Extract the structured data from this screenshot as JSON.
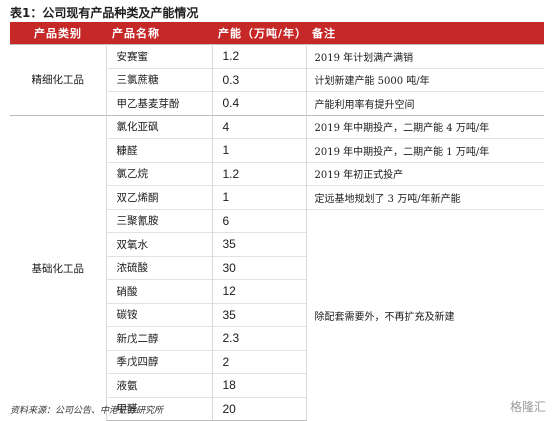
{
  "caption": "表1：公司现有产品种类及产能情况",
  "headers": {
    "category": "产品类别",
    "name": "产品名称",
    "capacity": "产能（万吨/年）",
    "note": "备注"
  },
  "groups": [
    {
      "category": "精细化工品",
      "rows": [
        {
          "name": "安赛蜜",
          "capacity": "1.2",
          "note": "2019 年计划满产满销"
        },
        {
          "name": "三氯蔗糖",
          "capacity": "0.3",
          "note": "计划新建产能 5000 吨/年"
        },
        {
          "name": "甲乙基麦芽酚",
          "capacity": "0.4",
          "note": "产能利用率有提升空间"
        }
      ]
    },
    {
      "category": "基础化工品",
      "rows": [
        {
          "name": "氯化亚砜",
          "capacity": "4",
          "note": "2019 年中期投产，二期产能 4 万吨/年"
        },
        {
          "name": "糠醛",
          "capacity": "1",
          "note": "2019 年中期投产，二期产能 1 万吨/年"
        },
        {
          "name": "氯乙烷",
          "capacity": "1.2",
          "note": "2019 年初正式投产"
        },
        {
          "name": "双乙烯酮",
          "capacity": "1",
          "note": "定远基地规划了 3 万吨/年新产能"
        },
        {
          "name": "三聚氰胺",
          "capacity": "6",
          "note": ""
        },
        {
          "name": "双氧水",
          "capacity": "35",
          "note": ""
        },
        {
          "name": "浓硫酸",
          "capacity": "30",
          "note": ""
        },
        {
          "name": "硝酸",
          "capacity": "12",
          "note": ""
        },
        {
          "name": "碳铵",
          "capacity": "35",
          "note": ""
        },
        {
          "name": "新戊二醇",
          "capacity": "2.3",
          "note": ""
        },
        {
          "name": "季戊四醇",
          "capacity": "2",
          "note": ""
        },
        {
          "name": "液氨",
          "capacity": "18",
          "note": ""
        },
        {
          "name": "甲醛",
          "capacity": "20",
          "note": ""
        }
      ],
      "merged_note": "除配套需要外，不再扩充及新建"
    }
  ],
  "source": "资料来源：公司公告、中港证券研究所",
  "watermark": "格隆汇"
}
